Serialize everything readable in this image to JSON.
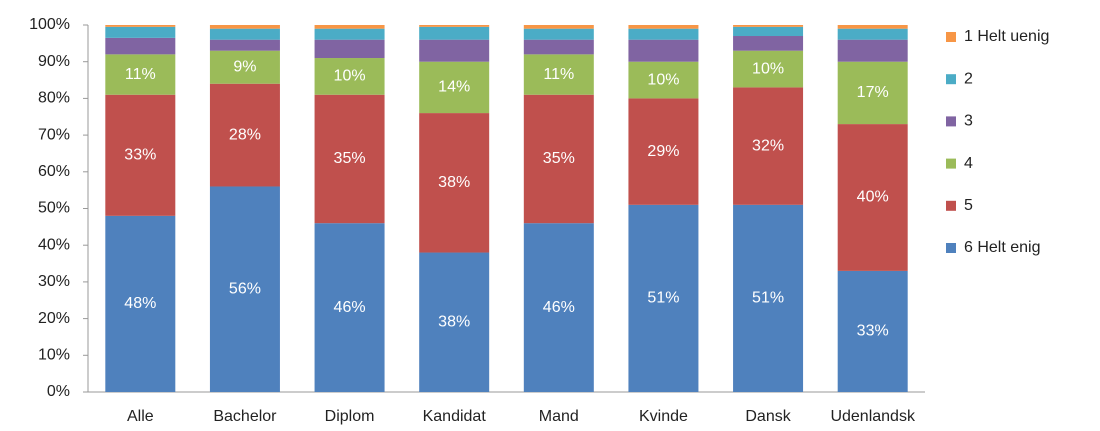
{
  "chart_data": {
    "type": "bar",
    "stacked": true,
    "categories": [
      "Alle",
      "Bachelor",
      "Diplom",
      "Kandidat",
      "Mand",
      "Kvinde",
      "Dansk",
      "Udenlandsk"
    ],
    "series": [
      {
        "name": "6 Helt enig",
        "color": "#4f81bd",
        "values": [
          48,
          56,
          46,
          38,
          46,
          51,
          51,
          33
        ],
        "value_labels": [
          "48%",
          "56%",
          "46%",
          "38%",
          "46%",
          "51%",
          "51%",
          "33%"
        ]
      },
      {
        "name": "5",
        "color": "#c0504d",
        "values": [
          33,
          28,
          35,
          38,
          35,
          29,
          32,
          40
        ],
        "value_labels": [
          "33%",
          "28%",
          "35%",
          "38%",
          "35%",
          "29%",
          "32%",
          "40%"
        ]
      },
      {
        "name": "4",
        "color": "#9bbb59",
        "values": [
          11,
          9,
          10,
          14,
          11,
          10,
          10,
          17
        ],
        "value_labels": [
          "11%",
          "9%",
          "10%",
          "14%",
          "11%",
          "10%",
          "10%",
          "17%"
        ]
      },
      {
        "name": "3",
        "color": "#8064a2",
        "values": [
          4.5,
          3,
          5,
          6,
          4,
          6,
          4,
          6
        ]
      },
      {
        "name": "2",
        "color": "#4bacc6",
        "values": [
          3,
          3,
          3,
          3.5,
          3,
          3,
          2.5,
          3
        ]
      },
      {
        "name": "1 Helt uenig",
        "color": "#f79646",
        "values": [
          0.5,
          1,
          1,
          0.5,
          1,
          1,
          0.5,
          1
        ]
      }
    ],
    "ylim": [
      0,
      100
    ],
    "yticks": [
      {
        "value": 0,
        "label": "0%"
      },
      {
        "value": 10,
        "label": "10%"
      },
      {
        "value": 20,
        "label": "20%"
      },
      {
        "value": 30,
        "label": "30%"
      },
      {
        "value": 40,
        "label": "40%"
      },
      {
        "value": 50,
        "label": "50%"
      },
      {
        "value": 60,
        "label": "60%"
      },
      {
        "value": 70,
        "label": "70%"
      },
      {
        "value": 80,
        "label": "80%"
      },
      {
        "value": 90,
        "label": "90%"
      },
      {
        "value": 100,
        "label": "100%"
      }
    ],
    "legend": "right"
  }
}
